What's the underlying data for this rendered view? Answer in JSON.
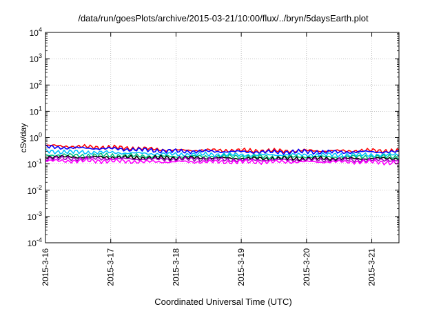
{
  "chart_data": {
    "type": "line",
    "title": "/data/run/goesPlots/archive/2015-03-21/10:00/flux/../bryn/5daysEarth.plot",
    "xlabel": "Coordinated Universal Time (UTC)",
    "ylabel": "cSv/day",
    "xscale": "time",
    "yscale": "log",
    "xlim": [
      "2015-03-16 00:00",
      "2015-03-21 10:00"
    ],
    "ylim": [
      0.0001,
      10000
    ],
    "x_ticks": [
      "2015-3-16",
      "2015-3-17",
      "2015-3-18",
      "2015-3-19",
      "2015-3-20",
      "2015-3-21"
    ],
    "y_ticks": [
      {
        "value": 0.0001,
        "base": "10",
        "exp": "-4"
      },
      {
        "value": 0.001,
        "base": "10",
        "exp": "-3"
      },
      {
        "value": 0.01,
        "base": "10",
        "exp": "-2"
      },
      {
        "value": 0.1,
        "base": "10",
        "exp": "-1"
      },
      {
        "value": 1,
        "base": "10",
        "exp": "0"
      },
      {
        "value": 10,
        "base": "10",
        "exp": "1"
      },
      {
        "value": 100,
        "base": "10",
        "exp": "2"
      },
      {
        "value": 1000,
        "base": "10",
        "exp": "3"
      },
      {
        "value": 10000,
        "base": "10",
        "exp": "4"
      }
    ],
    "grid": true,
    "series": [
      {
        "color": "#ff0000",
        "x": [
          "2015-03-16 00:00",
          "2015-03-16 12:00",
          "2015-03-17 00:00",
          "2015-03-17 12:00",
          "2015-03-18 00:00",
          "2015-03-18 12:00",
          "2015-03-19 00:00",
          "2015-03-19 12:00",
          "2015-03-20 00:00",
          "2015-03-20 12:00",
          "2015-03-21 00:00",
          "2015-03-21 10:00"
        ],
        "y": [
          0.5,
          0.45,
          0.42,
          0.38,
          0.33,
          0.33,
          0.32,
          0.31,
          0.32,
          0.31,
          0.32,
          0.31
        ]
      },
      {
        "color": "#0000ff",
        "x": [
          "2015-03-16 00:00",
          "2015-03-16 12:00",
          "2015-03-17 00:00",
          "2015-03-17 12:00",
          "2015-03-18 00:00",
          "2015-03-18 12:00",
          "2015-03-19 00:00",
          "2015-03-19 12:00",
          "2015-03-20 00:00",
          "2015-03-20 12:00",
          "2015-03-21 00:00",
          "2015-03-21 10:00"
        ],
        "y": [
          0.44,
          0.4,
          0.38,
          0.34,
          0.3,
          0.3,
          0.29,
          0.28,
          0.29,
          0.28,
          0.29,
          0.28
        ]
      },
      {
        "color": "#00bfff",
        "x": [
          "2015-03-16 00:00",
          "2015-03-16 12:00",
          "2015-03-17 00:00",
          "2015-03-17 12:00",
          "2015-03-18 00:00",
          "2015-03-18 12:00",
          "2015-03-19 00:00",
          "2015-03-19 12:00",
          "2015-03-20 00:00",
          "2015-03-20 12:00",
          "2015-03-21 00:00",
          "2015-03-21 10:00"
        ],
        "y": [
          0.3,
          0.28,
          0.27,
          0.25,
          0.23,
          0.23,
          0.22,
          0.22,
          0.22,
          0.22,
          0.22,
          0.22
        ]
      },
      {
        "color": "#00c080",
        "x": [
          "2015-03-16 00:00",
          "2015-03-16 12:00",
          "2015-03-17 00:00",
          "2015-03-17 12:00",
          "2015-03-18 00:00",
          "2015-03-18 12:00",
          "2015-03-19 00:00",
          "2015-03-19 12:00",
          "2015-03-20 00:00",
          "2015-03-20 12:00",
          "2015-03-21 00:00",
          "2015-03-21 10:00"
        ],
        "y": [
          0.22,
          0.21,
          0.21,
          0.2,
          0.19,
          0.19,
          0.19,
          0.18,
          0.19,
          0.18,
          0.19,
          0.18
        ]
      },
      {
        "color": "#000000",
        "x": [
          "2015-03-16 00:00",
          "2015-03-16 12:00",
          "2015-03-17 00:00",
          "2015-03-17 12:00",
          "2015-03-18 00:00",
          "2015-03-18 12:00",
          "2015-03-19 00:00",
          "2015-03-19 12:00",
          "2015-03-20 00:00",
          "2015-03-20 12:00",
          "2015-03-21 00:00",
          "2015-03-21 10:00"
        ],
        "y": [
          0.19,
          0.18,
          0.18,
          0.17,
          0.17,
          0.17,
          0.16,
          0.16,
          0.16,
          0.16,
          0.16,
          0.16
        ]
      },
      {
        "color": "#a000c0",
        "x": [
          "2015-03-16 00:00",
          "2015-03-16 12:00",
          "2015-03-17 00:00",
          "2015-03-17 12:00",
          "2015-03-18 00:00",
          "2015-03-18 12:00",
          "2015-03-19 00:00",
          "2015-03-19 12:00",
          "2015-03-20 00:00",
          "2015-03-20 12:00",
          "2015-03-21 00:00",
          "2015-03-21 10:00"
        ],
        "y": [
          0.16,
          0.16,
          0.16,
          0.15,
          0.15,
          0.15,
          0.14,
          0.14,
          0.14,
          0.14,
          0.14,
          0.14
        ]
      },
      {
        "color": "#ff00ff",
        "x": [
          "2015-03-16 00:00",
          "2015-03-16 12:00",
          "2015-03-17 00:00",
          "2015-03-17 12:00",
          "2015-03-18 00:00",
          "2015-03-18 12:00",
          "2015-03-19 00:00",
          "2015-03-19 12:00",
          "2015-03-20 00:00",
          "2015-03-20 12:00",
          "2015-03-21 00:00",
          "2015-03-21 10:00"
        ],
        "y": [
          0.13,
          0.13,
          0.13,
          0.12,
          0.12,
          0.12,
          0.12,
          0.12,
          0.12,
          0.12,
          0.12,
          0.11
        ]
      }
    ]
  }
}
